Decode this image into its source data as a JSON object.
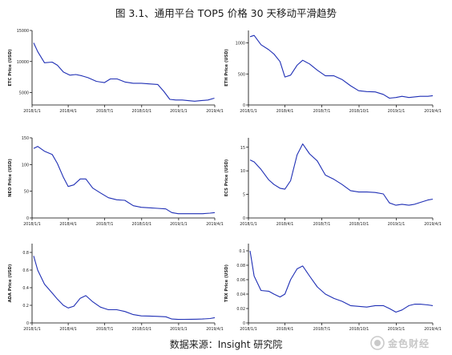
{
  "title": "图 3.1、通用平台 TOP5 价格 30 天移动平滑趋势",
  "source": "数据来源：Insight 研究院",
  "watermark": {
    "text": "金色财经",
    "icon": "coin-logo-icon"
  },
  "colors": {
    "line": "#1f2fb5",
    "axis": "#000000",
    "text": "#222222"
  },
  "chart_data": [
    {
      "type": "line",
      "title": "",
      "xlabel": "",
      "ylabel": "ETC Price (USD)",
      "x_ticks": [
        "2018/1/1",
        "2018/4/1",
        "2018/7/1",
        "2018/10/1",
        "2019/1/1",
        "2019/4/1"
      ],
      "y_ticks": [
        5000,
        10000,
        15000
      ],
      "ylim": [
        3000,
        15000
      ],
      "series": [
        {
          "x": [
            "2018/1/5",
            "2018/1/15",
            "2018/2/1",
            "2018/2/20",
            "2018/3/5",
            "2018/3/20",
            "2018/4/5",
            "2018/4/20",
            "2018/5/5",
            "2018/5/20",
            "2018/6/10",
            "2018/6/30",
            "2018/7/15",
            "2018/8/1",
            "2018/8/20",
            "2018/9/10",
            "2018/9/30",
            "2018/10/20",
            "2018/11/10",
            "2018/11/25",
            "2018/12/10",
            "2018/12/25",
            "2019/1/10",
            "2019/1/25",
            "2019/2/10",
            "2019/2/25",
            "2019/3/15",
            "2019/3/31"
          ],
          "y": [
            13000,
            11600,
            9800,
            9900,
            9400,
            8300,
            7800,
            7900,
            7700,
            7400,
            6800,
            6600,
            7200,
            7200,
            6700,
            6500,
            6500,
            6400,
            6300,
            5200,
            3900,
            3800,
            3800,
            3700,
            3600,
            3700,
            3800,
            4100
          ]
        }
      ]
    },
    {
      "type": "line",
      "title": "",
      "xlabel": "",
      "ylabel": "ETH Price (USD)",
      "x_ticks": [
        "2018/1/1",
        "2018/4/1",
        "2018/7/1",
        "2018/10/1",
        "2019/1/1",
        "2019/4/1"
      ],
      "y_ticks": [
        0,
        500,
        1000
      ],
      "ylim": [
        0,
        1200
      ],
      "series": [
        {
          "x": [
            "2018/1/5",
            "2018/1/15",
            "2018/2/1",
            "2018/2/20",
            "2018/3/5",
            "2018/3/20",
            "2018/4/1",
            "2018/4/15",
            "2018/5/1",
            "2018/5/15",
            "2018/6/1",
            "2018/6/20",
            "2018/7/10",
            "2018/7/31",
            "2018/8/20",
            "2018/9/10",
            "2018/9/30",
            "2018/10/20",
            "2018/11/10",
            "2018/11/30",
            "2018/12/15",
            "2018/12/31",
            "2019/1/15",
            "2019/2/1",
            "2019/2/15",
            "2019/3/1",
            "2019/3/20",
            "2019/4/1"
          ],
          "y": [
            1100,
            1120,
            970,
            890,
            820,
            700,
            450,
            480,
            640,
            720,
            660,
            560,
            470,
            470,
            410,
            310,
            230,
            215,
            210,
            170,
            110,
            120,
            140,
            120,
            130,
            140,
            140,
            150
          ]
        }
      ]
    },
    {
      "type": "line",
      "title": "",
      "xlabel": "",
      "ylabel": "NEO Price (USD)",
      "x_ticks": [
        "2018/1/1",
        "2018/4/1",
        "2018/7/1",
        "2018/10/1",
        "2019/1/1",
        "2019/4/1"
      ],
      "y_ticks": [
        0,
        50,
        100,
        150
      ],
      "ylim": [
        0,
        150
      ],
      "series": [
        {
          "x": [
            "2018/1/5",
            "2018/1/15",
            "2018/2/1",
            "2018/2/20",
            "2018/3/5",
            "2018/3/20",
            "2018/4/1",
            "2018/4/15",
            "2018/5/1",
            "2018/5/15",
            "2018/6/1",
            "2018/6/20",
            "2018/7/10",
            "2018/7/31",
            "2018/8/20",
            "2018/9/10",
            "2018/9/30",
            "2018/10/20",
            "2018/11/10",
            "2018/11/30",
            "2018/12/15",
            "2018/12/31",
            "2019/1/15",
            "2019/2/1",
            "2019/2/15",
            "2019/3/1",
            "2019/3/20",
            "2019/4/1"
          ],
          "y": [
            130,
            134,
            125,
            119,
            102,
            76,
            59,
            62,
            73,
            73,
            56,
            47,
            38,
            34,
            33,
            23,
            20,
            19,
            18,
            17,
            10,
            8,
            8,
            8,
            8,
            8,
            9,
            10
          ]
        }
      ]
    },
    {
      "type": "line",
      "title": "",
      "xlabel": "",
      "ylabel": "ECS Price (USD)",
      "x_ticks": [
        "2018/1/1",
        "2018/4/1",
        "2018/7/1",
        "2018/10/1",
        "2019/1/1",
        "2019/4/1"
      ],
      "y_ticks": [
        0,
        5,
        10,
        15
      ],
      "ylim": [
        0,
        17
      ],
      "series": [
        {
          "x": [
            "2018/1/5",
            "2018/1/15",
            "2018/2/1",
            "2018/2/20",
            "2018/3/5",
            "2018/3/20",
            "2018/4/1",
            "2018/4/15",
            "2018/5/1",
            "2018/5/15",
            "2018/6/1",
            "2018/6/20",
            "2018/7/10",
            "2018/7/31",
            "2018/8/20",
            "2018/9/10",
            "2018/9/30",
            "2018/10/20",
            "2018/11/10",
            "2018/11/30",
            "2018/12/15",
            "2018/12/31",
            "2019/1/15",
            "2019/2/1",
            "2019/2/15",
            "2019/3/1",
            "2019/3/20",
            "2019/4/1"
          ],
          "y": [
            12.3,
            11.9,
            10.3,
            8.1,
            7.1,
            6.3,
            6.1,
            7.9,
            13.4,
            15.7,
            13.6,
            12.1,
            9.1,
            8.2,
            7.1,
            5.8,
            5.5,
            5.5,
            5.4,
            5.1,
            3.2,
            2.7,
            2.9,
            2.7,
            2.9,
            3.3,
            3.8,
            4.0
          ]
        }
      ]
    },
    {
      "type": "line",
      "title": "",
      "xlabel": "",
      "ylabel": "ADA Price (USD)",
      "x_ticks": [
        "2018/1/1",
        "2018/4/1",
        "2018/7/1",
        "2018/10/1",
        "2019/1/1",
        "2019/4/1"
      ],
      "y_ticks": [
        0.0,
        0.2,
        0.4,
        0.6,
        0.8
      ],
      "ylim": [
        0.0,
        0.9
      ],
      "series": [
        {
          "x": [
            "2018/1/5",
            "2018/1/15",
            "2018/2/1",
            "2018/2/20",
            "2018/3/5",
            "2018/3/20",
            "2018/4/1",
            "2018/4/15",
            "2018/5/1",
            "2018/5/15",
            "2018/6/1",
            "2018/6/20",
            "2018/7/10",
            "2018/7/31",
            "2018/8/20",
            "2018/9/10",
            "2018/9/30",
            "2018/10/20",
            "2018/11/10",
            "2018/11/30",
            "2018/12/15",
            "2018/12/31",
            "2019/1/15",
            "2019/2/1",
            "2019/2/15",
            "2019/3/1",
            "2019/3/20",
            "2019/4/1"
          ],
          "y": [
            0.76,
            0.6,
            0.44,
            0.34,
            0.27,
            0.2,
            0.17,
            0.19,
            0.28,
            0.31,
            0.24,
            0.18,
            0.15,
            0.15,
            0.13,
            0.095,
            0.08,
            0.078,
            0.075,
            0.07,
            0.045,
            0.04,
            0.041,
            0.042,
            0.043,
            0.045,
            0.05,
            0.06
          ]
        }
      ]
    },
    {
      "type": "line",
      "title": "",
      "xlabel": "",
      "ylabel": "TRX Price (USD)",
      "x_ticks": [
        "2018/1/1",
        "2018/4/1",
        "2018/7/1",
        "2018/10/1",
        "2019/1/1",
        "2019/4/1"
      ],
      "y_ticks": [
        0.0,
        0.02,
        0.04,
        0.06,
        0.08,
        0.1
      ],
      "ylim": [
        0.0,
        0.11
      ],
      "series": [
        {
          "x": [
            "2018/1/5",
            "2018/1/15",
            "2018/2/1",
            "2018/2/20",
            "2018/3/5",
            "2018/3/20",
            "2018/4/1",
            "2018/4/15",
            "2018/5/1",
            "2018/5/15",
            "2018/6/1",
            "2018/6/20",
            "2018/7/10",
            "2018/7/31",
            "2018/8/20",
            "2018/9/10",
            "2018/9/30",
            "2018/10/20",
            "2018/11/10",
            "2018/11/30",
            "2018/12/15",
            "2018/12/31",
            "2019/1/15",
            "2019/2/1",
            "2019/2/15",
            "2019/3/1",
            "2019/3/20",
            "2019/4/1"
          ],
          "y": [
            0.1,
            0.065,
            0.045,
            0.044,
            0.04,
            0.036,
            0.04,
            0.06,
            0.075,
            0.079,
            0.065,
            0.05,
            0.04,
            0.034,
            0.03,
            0.024,
            0.023,
            0.022,
            0.024,
            0.024,
            0.02,
            0.015,
            0.018,
            0.024,
            0.026,
            0.026,
            0.025,
            0.024
          ]
        }
      ]
    }
  ]
}
